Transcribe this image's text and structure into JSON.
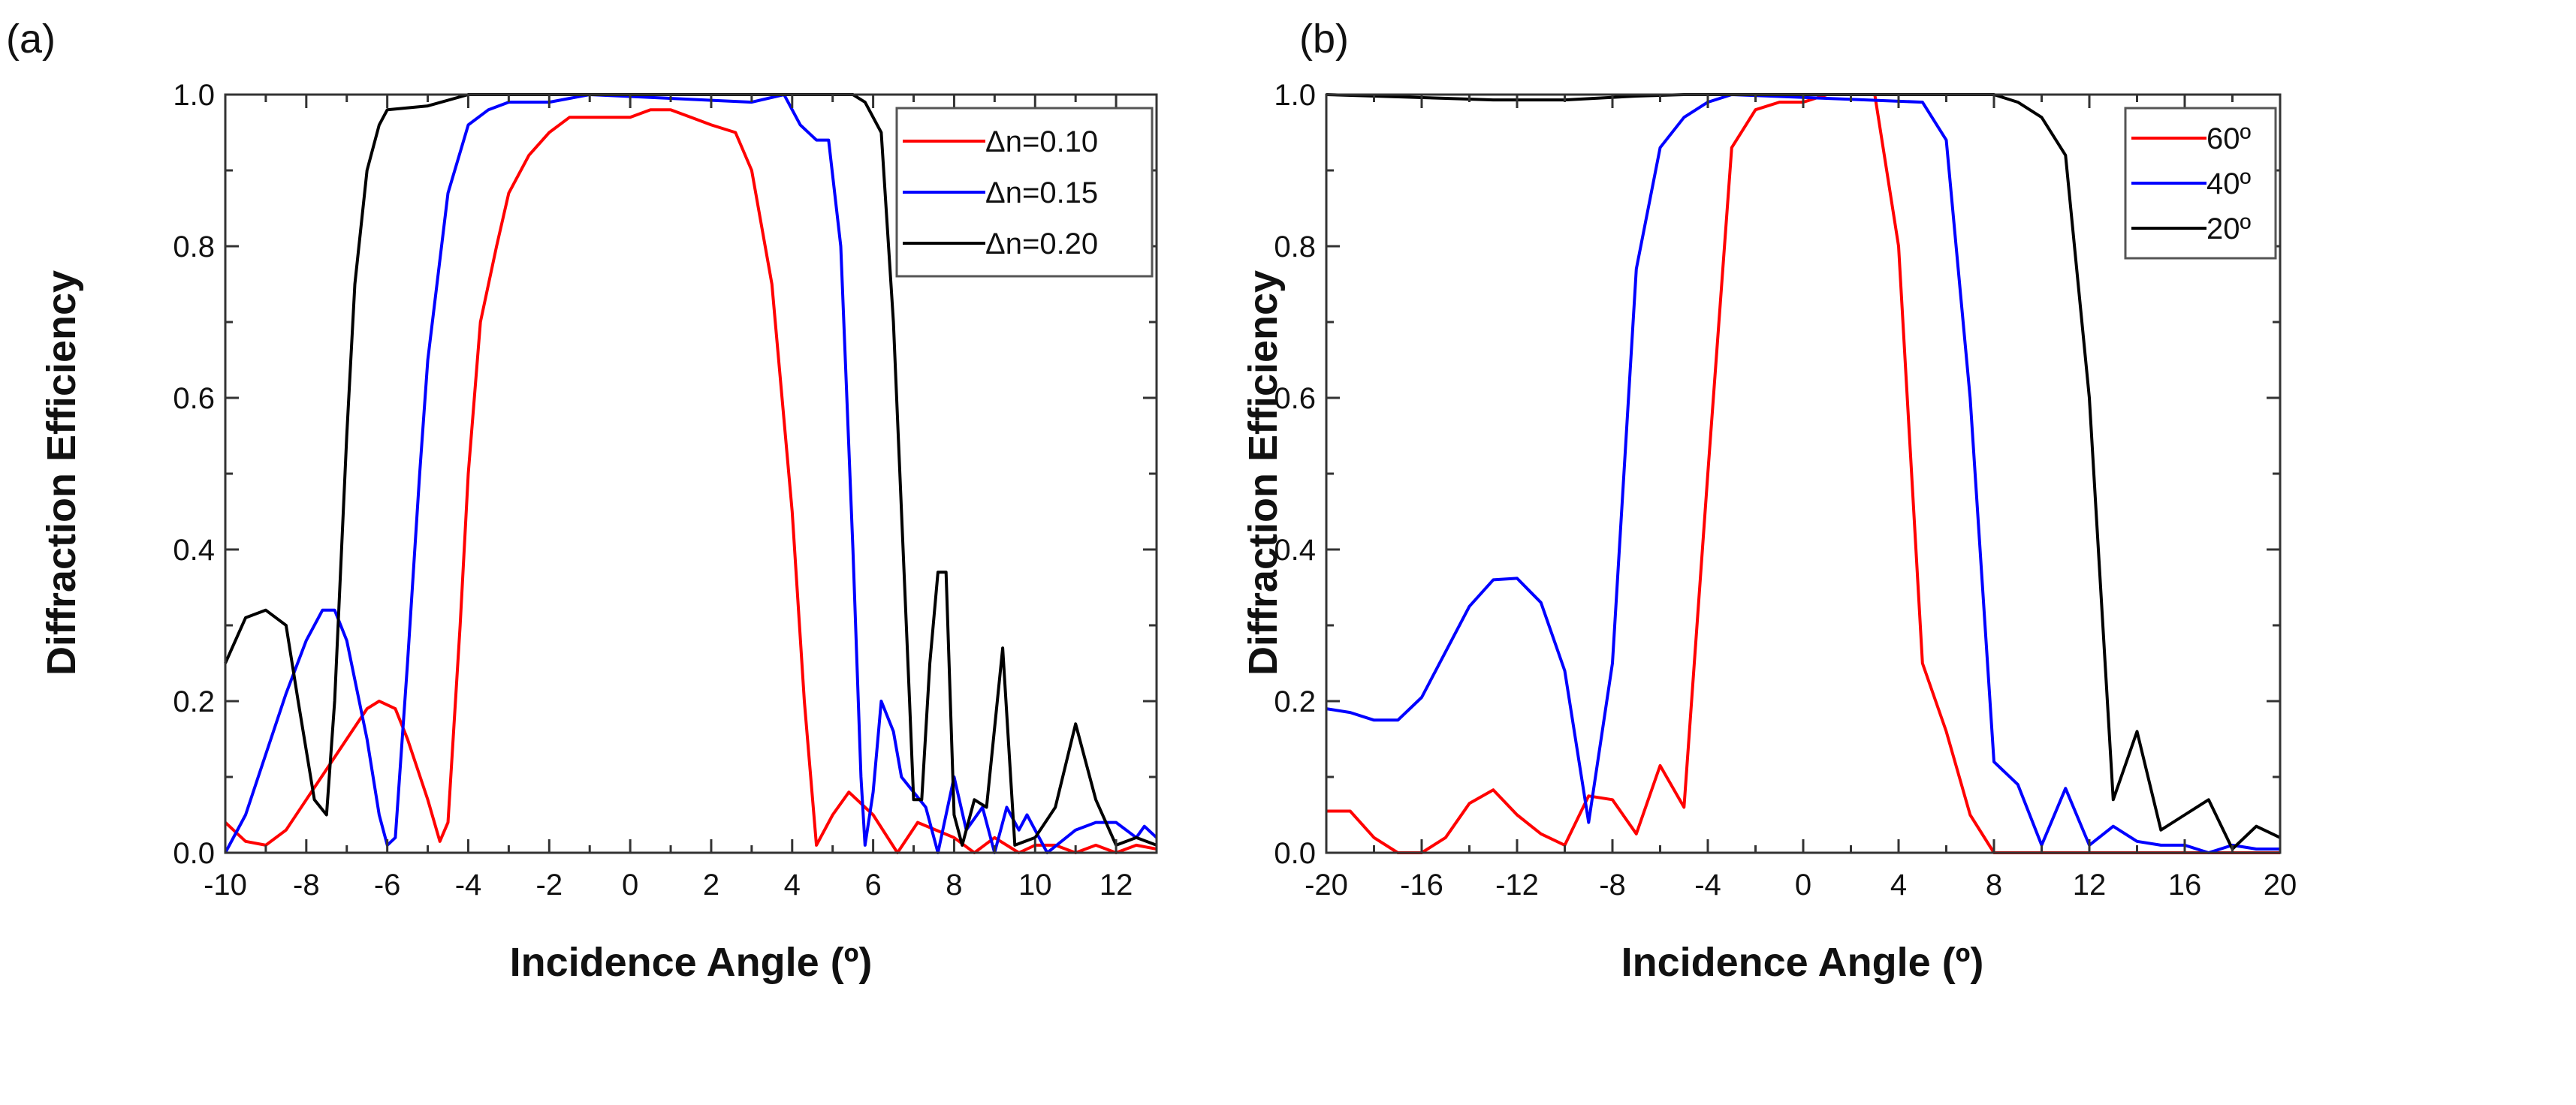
{
  "chart_data": [
    {
      "type": "line",
      "panel_label": "(a)",
      "xlabel": "Incidence Angle (º)",
      "ylabel": "Diffraction Efficiency",
      "xlim": [
        -10,
        13
      ],
      "ylim": [
        0,
        1.0
      ],
      "xticks": [
        -10,
        -8,
        -6,
        -4,
        -2,
        0,
        2,
        4,
        6,
        8,
        10,
        12
      ],
      "xtick_labels": [
        "-10",
        "-8",
        "-6",
        "-4",
        "-2",
        "0",
        "2",
        "4",
        "6",
        "8",
        "10",
        "12"
      ],
      "yticks": [
        0,
        0.2,
        0.4,
        0.6,
        0.8,
        1.0
      ],
      "ytick_labels": [
        "0.0",
        "0.2",
        "0.4",
        "0.6",
        "0.8",
        "1.0"
      ],
      "legend_position": "top-right",
      "series": [
        {
          "name": "Δn=0.10",
          "color": "#ff0000",
          "x": [
            -10,
            -9.5,
            -9,
            -8.5,
            -8,
            -7.5,
            -7,
            -6.5,
            -6.2,
            -5.8,
            -5.5,
            -5,
            -4.7,
            -4.5,
            -4.2,
            -4,
            -3.7,
            -3.3,
            -3,
            -2.5,
            -2,
            -1.5,
            -1,
            0,
            0.5,
            1,
            1.5,
            2,
            2.6,
            3,
            3.5,
            4,
            4.3,
            4.6,
            5,
            5.4,
            6,
            6.6,
            7.1,
            8,
            8.5,
            9,
            9.6,
            10,
            10.5,
            11,
            11.5,
            12,
            12.5,
            13
          ],
          "y": [
            0.04,
            0.015,
            0.01,
            0.03,
            0.07,
            0.11,
            0.15,
            0.19,
            0.2,
            0.19,
            0.15,
            0.07,
            0.015,
            0.04,
            0.3,
            0.5,
            0.7,
            0.8,
            0.87,
            0.92,
            0.95,
            0.97,
            0.97,
            0.97,
            0.98,
            0.98,
            0.97,
            0.96,
            0.95,
            0.9,
            0.75,
            0.45,
            0.2,
            0.01,
            0.05,
            0.08,
            0.05,
            0.0,
            0.04,
            0.02,
            0.0,
            0.02,
            0.0,
            0.01,
            0.01,
            0.0,
            0.01,
            0.0,
            0.01,
            0.005
          ]
        },
        {
          "name": "Δn=0.15",
          "color": "#0000ff",
          "x": [
            -10,
            -9.5,
            -9,
            -8.5,
            -8,
            -7.6,
            -7.3,
            -7,
            -6.5,
            -6.2,
            -6,
            -5.8,
            -5.5,
            -5.2,
            -5,
            -4.5,
            -4,
            -3.5,
            -3,
            -2,
            -1,
            3,
            3.8,
            4.2,
            4.6,
            4.9,
            5.2,
            5.5,
            5.7,
            5.8,
            6,
            6.2,
            6.5,
            6.7,
            7,
            7.3,
            7.6,
            8,
            8.3,
            8.7,
            9,
            9.3,
            9.6,
            9.8,
            10.3,
            11,
            11.5,
            12,
            12.5,
            12.7,
            13
          ],
          "y": [
            0.0,
            0.05,
            0.13,
            0.21,
            0.28,
            0.32,
            0.32,
            0.28,
            0.15,
            0.05,
            0.01,
            0.02,
            0.25,
            0.5,
            0.65,
            0.87,
            0.96,
            0.98,
            0.99,
            0.99,
            1.0,
            0.99,
            1.0,
            0.96,
            0.94,
            0.94,
            0.8,
            0.4,
            0.1,
            0.01,
            0.08,
            0.2,
            0.16,
            0.1,
            0.08,
            0.06,
            0.0,
            0.1,
            0.03,
            0.06,
            0.0,
            0.06,
            0.03,
            0.05,
            0.0,
            0.03,
            0.04,
            0.04,
            0.02,
            0.035,
            0.02
          ]
        },
        {
          "name": "Δn=0.20",
          "color": "#000000",
          "x": [
            -10,
            -9.5,
            -9,
            -8.5,
            -8.2,
            -7.8,
            -7.5,
            -7.3,
            -7,
            -6.8,
            -6.5,
            -6.2,
            -6,
            -5,
            -4,
            5.5,
            5.8,
            6.2,
            6.5,
            6.9,
            7,
            7.2,
            7.4,
            7.6,
            7.8,
            8,
            8.2,
            8.5,
            8.8,
            9.2,
            9.5,
            10,
            10.5,
            11,
            11.5,
            12,
            12.5,
            13
          ],
          "y": [
            0.25,
            0.31,
            0.32,
            0.3,
            0.2,
            0.07,
            0.05,
            0.2,
            0.55,
            0.75,
            0.9,
            0.96,
            0.98,
            0.985,
            1.0,
            1.0,
            0.99,
            0.95,
            0.7,
            0.2,
            0.07,
            0.07,
            0.25,
            0.37,
            0.37,
            0.05,
            0.01,
            0.07,
            0.06,
            0.27,
            0.01,
            0.02,
            0.06,
            0.17,
            0.07,
            0.01,
            0.02,
            0.01
          ]
        }
      ]
    },
    {
      "type": "line",
      "panel_label": "(b)",
      "xlabel": "Incidence Angle (º)",
      "ylabel": "Diffraction Efficiency",
      "xlim": [
        -20,
        20
      ],
      "ylim": [
        0,
        1.0
      ],
      "xticks": [
        -20,
        -16,
        -12,
        -8,
        -4,
        0,
        4,
        8,
        12,
        16,
        20
      ],
      "xtick_labels": [
        "-20",
        "-16",
        "-12",
        "-8",
        "-4",
        "0",
        "4",
        "8",
        "12",
        "16",
        "20"
      ],
      "yticks": [
        0,
        0.2,
        0.4,
        0.6,
        0.8,
        1.0
      ],
      "ytick_labels": [
        "0.0",
        "0.2",
        "0.4",
        "0.6",
        "0.8",
        "1.0"
      ],
      "legend_position": "top-right",
      "series": [
        {
          "name": "60º",
          "color": "#ff0000",
          "x": [
            -20,
            -19,
            -18,
            -17,
            -16,
            -15,
            -14,
            -13,
            -12,
            -11,
            -10,
            -9,
            -8,
            -7,
            -6,
            -5,
            -4,
            -3,
            -2,
            -1,
            0,
            1,
            2,
            3,
            4,
            5,
            6,
            7,
            8,
            20
          ],
          "y": [
            0.055,
            0.055,
            0.02,
            0.0,
            0.0,
            0.02,
            0.065,
            0.083,
            0.05,
            0.025,
            0.01,
            0.075,
            0.07,
            0.025,
            0.115,
            0.06,
            0.5,
            0.93,
            0.98,
            0.99,
            0.99,
            1.0,
            1.0,
            1.0,
            0.8,
            0.25,
            0.16,
            0.05,
            0.0,
            0.0
          ]
        },
        {
          "name": "40º",
          "color": "#0000ff",
          "x": [
            -20,
            -19,
            -18,
            -17,
            -16,
            -15,
            -14,
            -13,
            -12,
            -11,
            -10,
            -9,
            -8,
            -7,
            -6,
            -5,
            -4,
            -3,
            5,
            6,
            7,
            8,
            9,
            10,
            11,
            12,
            13,
            14,
            15,
            16,
            17,
            18,
            19,
            20
          ],
          "y": [
            0.19,
            0.185,
            0.175,
            0.175,
            0.205,
            0.265,
            0.325,
            0.36,
            0.362,
            0.33,
            0.24,
            0.04,
            0.25,
            0.77,
            0.93,
            0.97,
            0.99,
            1.0,
            0.99,
            0.94,
            0.6,
            0.12,
            0.09,
            0.01,
            0.085,
            0.01,
            0.035,
            0.015,
            0.01,
            0.01,
            0.0,
            0.01,
            0.005,
            0.005
          ]
        },
        {
          "name": "20º",
          "color": "#000000",
          "x": [
            -20,
            -15,
            -13,
            -10,
            -7,
            -5,
            8,
            9,
            10,
            11,
            12,
            13,
            14,
            15,
            16,
            17,
            18,
            19,
            20
          ],
          "y": [
            1.0,
            0.995,
            0.993,
            0.993,
            0.998,
            1.0,
            1.0,
            0.99,
            0.97,
            0.92,
            0.6,
            0.07,
            0.16,
            0.03,
            0.05,
            0.07,
            0.005,
            0.035,
            0.02
          ]
        }
      ]
    }
  ]
}
